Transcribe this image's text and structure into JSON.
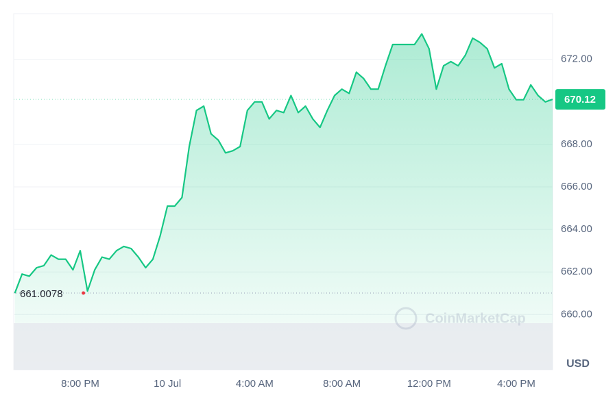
{
  "chart_data": {
    "type": "line",
    "categories": [
      null,
      null,
      null,
      null,
      null,
      null,
      null,
      null,
      null,
      "8:00 PM",
      null,
      null,
      null,
      null,
      null,
      null,
      null,
      null,
      null,
      null,
      null,
      "10 Jul",
      null,
      null,
      null,
      null,
      null,
      null,
      null,
      null,
      null,
      null,
      null,
      "4:00 AM",
      null,
      null,
      null,
      null,
      null,
      null,
      null,
      null,
      null,
      null,
      null,
      "8:00 AM",
      null,
      null,
      null,
      null,
      null,
      null,
      null,
      null,
      null,
      null,
      null,
      "12:00 PM",
      null,
      null,
      null,
      null,
      null,
      null,
      null,
      null,
      null,
      null,
      null,
      "4:00 PM",
      null,
      null,
      null,
      null,
      null
    ],
    "series": [
      {
        "color": "#16c784",
        "values": [
          661.0,
          661.9,
          661.8,
          662.2,
          662.3,
          662.8,
          662.6,
          662.6,
          662.1,
          663.0,
          661.1,
          662.1,
          662.7,
          662.6,
          663.0,
          663.2,
          663.1,
          662.7,
          662.2,
          662.6,
          663.7,
          665.1,
          665.1,
          665.5,
          667.9,
          669.6,
          669.8,
          668.5,
          668.2,
          667.6,
          667.7,
          667.9,
          669.6,
          670.0,
          670.0,
          669.2,
          669.6,
          669.5,
          670.3,
          669.5,
          669.8,
          669.2,
          668.8,
          669.6,
          670.3,
          670.6,
          670.4,
          671.4,
          671.1,
          670.6,
          670.6,
          671.7,
          672.7,
          672.7,
          672.7,
          672.7,
          673.2,
          672.5,
          670.6,
          671.7,
          671.9,
          671.7,
          672.2,
          673.0,
          672.8,
          672.5,
          671.6,
          671.8,
          670.6,
          670.1,
          670.1,
          670.8,
          670.3,
          670.0,
          670.12
        ]
      }
    ],
    "ylim": [
      657.4,
      674.15
    ],
    "yticks": [
      {
        "value": 660,
        "label": "660.00"
      },
      {
        "value": 662,
        "label": "662.00"
      },
      {
        "value": 664,
        "label": "664.00"
      },
      {
        "value": 666,
        "label": "666.00"
      },
      {
        "value": 668,
        "label": "668.00"
      },
      {
        "value": 672,
        "label": "672.00"
      }
    ],
    "grid": true,
    "low_value": 661.0078,
    "current_price": 670.12,
    "currency": "USD",
    "watermark": "CoinMarketCap"
  }
}
